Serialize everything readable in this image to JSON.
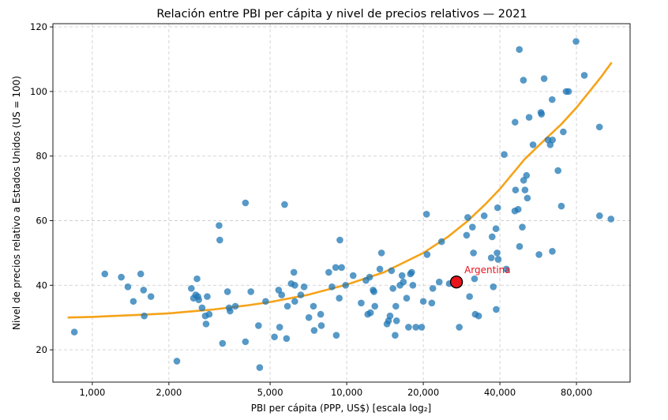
{
  "chart_data": {
    "type": "scatter",
    "title": "Relación entre PBI per cápita y nivel de precios relativos — 2021",
    "xlabel": "PBI per cápita (PPP, US$) [escala log₂]",
    "ylabel": "Nivel de precios relativo a Estados Unidos  (US = 100)",
    "xscale": "log2",
    "xlim": [
      700,
      130000
    ],
    "ylim": [
      10,
      121
    ],
    "xticks": [
      1000,
      2000,
      5000,
      10000,
      20000,
      40000,
      80000
    ],
    "xtick_labels": [
      "1,000",
      "2,000",
      "5,000",
      "10,000",
      "20,000",
      "40,000",
      "80,000"
    ],
    "yticks": [
      20,
      40,
      60,
      80,
      100,
      120
    ],
    "ytick_labels": [
      "20",
      "40",
      "60",
      "80",
      "100",
      "120"
    ],
    "grid": true,
    "point_color": "#1f77b4",
    "trend_color": "#f5a31a",
    "highlight_color": "#e8141d",
    "points": [
      [
        850,
        25.5
      ],
      [
        1120,
        43.5
      ],
      [
        1300,
        42.5
      ],
      [
        1380,
        39.5
      ],
      [
        1450,
        35
      ],
      [
        1550,
        43.5
      ],
      [
        1590,
        38.5
      ],
      [
        1600,
        30.5
      ],
      [
        1700,
        36.5
      ],
      [
        2150,
        16.5
      ],
      [
        2450,
        39
      ],
      [
        2500,
        36
      ],
      [
        2550,
        37
      ],
      [
        2580,
        42
      ],
      [
        2600,
        36.5
      ],
      [
        2620,
        35.5
      ],
      [
        2700,
        33
      ],
      [
        2780,
        30.5
      ],
      [
        2800,
        28
      ],
      [
        2830,
        36.5
      ],
      [
        2880,
        31
      ],
      [
        3150,
        58.5
      ],
      [
        3170,
        54
      ],
      [
        3250,
        22
      ],
      [
        3400,
        38
      ],
      [
        3450,
        33
      ],
      [
        3480,
        32
      ],
      [
        3650,
        33.5
      ],
      [
        4000,
        22.5
      ],
      [
        4000,
        65.5
      ],
      [
        4200,
        38
      ],
      [
        4500,
        27.5
      ],
      [
        4550,
        14.5
      ],
      [
        4800,
        35
      ],
      [
        5200,
        24
      ],
      [
        5400,
        38.5
      ],
      [
        5450,
        27
      ],
      [
        5550,
        37
      ],
      [
        5700,
        65
      ],
      [
        5800,
        23.5
      ],
      [
        5850,
        33.5
      ],
      [
        6050,
        40.5
      ],
      [
        6200,
        44
      ],
      [
        6250,
        35
      ],
      [
        6250,
        40
      ],
      [
        6600,
        37
      ],
      [
        6800,
        39.5
      ],
      [
        7100,
        30
      ],
      [
        7400,
        33.5
      ],
      [
        7450,
        26
      ],
      [
        7900,
        31
      ],
      [
        7950,
        27.5
      ],
      [
        8500,
        44
      ],
      [
        8750,
        39.5
      ],
      [
        9050,
        45.5
      ],
      [
        9100,
        24.5
      ],
      [
        9350,
        36
      ],
      [
        9400,
        54
      ],
      [
        9550,
        45.5
      ],
      [
        9900,
        40
      ],
      [
        10600,
        43
      ],
      [
        11400,
        34.5
      ],
      [
        11900,
        41.5
      ],
      [
        12100,
        31
      ],
      [
        12300,
        42.5
      ],
      [
        12400,
        31.5
      ],
      [
        12700,
        38.5
      ],
      [
        12800,
        38
      ],
      [
        12900,
        33.5
      ],
      [
        13500,
        45
      ],
      [
        13700,
        50
      ],
      [
        14400,
        28
      ],
      [
        14600,
        29
      ],
      [
        14800,
        30.5
      ],
      [
        15000,
        44.5
      ],
      [
        15200,
        39
      ],
      [
        15500,
        24.5
      ],
      [
        15600,
        33.5
      ],
      [
        15700,
        29
      ],
      [
        16200,
        40
      ],
      [
        16500,
        43
      ],
      [
        16700,
        41
      ],
      [
        17200,
        36
      ],
      [
        17500,
        27
      ],
      [
        17800,
        43.5
      ],
      [
        18000,
        44
      ],
      [
        18200,
        40
      ],
      [
        18700,
        27
      ],
      [
        19700,
        27
      ],
      [
        20000,
        35
      ],
      [
        20600,
        62
      ],
      [
        20700,
        49.5
      ],
      [
        21600,
        34.5
      ],
      [
        21800,
        39
      ],
      [
        23100,
        41
      ],
      [
        23600,
        53.5
      ],
      [
        25300,
        40.5
      ],
      [
        27700,
        27
      ],
      [
        29600,
        55.5
      ],
      [
        29900,
        61
      ],
      [
        30400,
        36.5
      ],
      [
        31200,
        58
      ],
      [
        31500,
        50
      ],
      [
        31800,
        42
      ],
      [
        32000,
        31
      ],
      [
        33000,
        30.5
      ],
      [
        34700,
        61.5
      ],
      [
        37000,
        48.5
      ],
      [
        37300,
        55
      ],
      [
        37700,
        39.5
      ],
      [
        38600,
        57.5
      ],
      [
        38700,
        32.5
      ],
      [
        39000,
        50
      ],
      [
        39200,
        64
      ],
      [
        39400,
        48
      ],
      [
        41600,
        80.5
      ],
      [
        42400,
        45
      ],
      [
        45800,
        63
      ],
      [
        45900,
        90.5
      ],
      [
        46100,
        69.5
      ],
      [
        47200,
        63.5
      ],
      [
        47700,
        113
      ],
      [
        47800,
        52
      ],
      [
        49000,
        58
      ],
      [
        49500,
        103.5
      ],
      [
        49600,
        72.5
      ],
      [
        50200,
        69.5
      ],
      [
        50900,
        74
      ],
      [
        51300,
        67
      ],
      [
        52100,
        92
      ],
      [
        54000,
        83.5
      ],
      [
        57000,
        49.5
      ],
      [
        58000,
        93.5
      ],
      [
        58300,
        93
      ],
      [
        59700,
        104
      ],
      [
        61800,
        85
      ],
      [
        63100,
        83.5
      ],
      [
        64200,
        97.5
      ],
      [
        64300,
        50.5
      ],
      [
        64400,
        85
      ],
      [
        67700,
        75.5
      ],
      [
        69800,
        64.5
      ],
      [
        71000,
        87.5
      ],
      [
        72900,
        100
      ],
      [
        74500,
        100
      ],
      [
        79700,
        115.5
      ],
      [
        85900,
        105
      ],
      [
        98500,
        89
      ],
      [
        98600,
        61.5
      ],
      [
        109300,
        60.5
      ]
    ],
    "highlight": {
      "label": "Argentina",
      "x": 27000,
      "y": 41
    },
    "trend": {
      "x": [
        800,
        1000,
        1500,
        2000,
        3000,
        4000,
        5000,
        7000,
        10000,
        14000,
        20000,
        25000,
        30000,
        35000,
        40000,
        50000,
        60000,
        70000,
        80000,
        90000,
        100000,
        110000
      ],
      "y": [
        30,
        30.2,
        30.8,
        31.3,
        32.5,
        33.7,
        34.8,
        37,
        40.2,
        44,
        50,
        55,
        60,
        65,
        69.8,
        79,
        85,
        90,
        95,
        100,
        104.5,
        109
      ]
    }
  }
}
